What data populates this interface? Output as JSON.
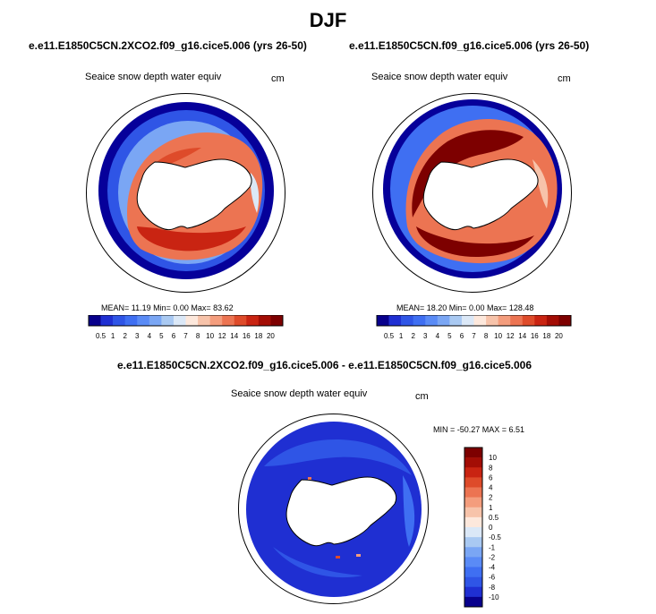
{
  "page_title": "DJF",
  "panels": [
    {
      "case": "e.e11.E1850C5CN.2XCO2.f09_g16.cice5.006 (yrs 26-50)",
      "variable": "Seaice snow depth water equiv",
      "units": "cm",
      "stats": "MEAN=  11.19  Min=   0.00  Max=  83.62",
      "mean": 11.19,
      "min": 0.0,
      "max": 83.62
    },
    {
      "case": "e.e11.E1850C5CN.f09_g16.cice5.006 (yrs 26-50)",
      "variable": "Seaice snow depth water equiv",
      "units": "cm",
      "stats": "MEAN=  18.20  Min=   0.00  Max= 128.48",
      "mean": 18.2,
      "min": 0.0,
      "max": 128.48
    },
    {
      "case": "e.e11.E1850C5CN.2XCO2.f09_g16.cice5.006 - e.e11.E1850C5CN.f09_g16.cice5.006",
      "variable": "Seaice snow depth water equiv",
      "units": "cm",
      "stats": "MIN = -50.27 MAX =   6.51",
      "min": -50.27,
      "max": 6.51
    }
  ],
  "colorbar_abs": {
    "labels": [
      "0.5",
      "1",
      "2",
      "3",
      "4",
      "5",
      "6",
      "7",
      "8",
      "10",
      "12",
      "14",
      "16",
      "18",
      "20"
    ],
    "colors": [
      "#08008c",
      "#1f2fd2",
      "#2f55e6",
      "#3f6ff2",
      "#5a8bf6",
      "#7aa6f4",
      "#a9c9f2",
      "#dbe8f7",
      "#fde8dc",
      "#f7c3aa",
      "#f49d7d",
      "#ec7452",
      "#de4b2a",
      "#c92412",
      "#a30d05",
      "#7d0000"
    ]
  },
  "colorbar_diff": {
    "labels": [
      "10",
      "8",
      "6",
      "4",
      "2",
      "1",
      "0.5",
      "0",
      "-0.5",
      "-1",
      "-2",
      "-4",
      "-6",
      "-8",
      "-10"
    ],
    "colors": [
      "#7d0000",
      "#a30d05",
      "#c92412",
      "#de4b2a",
      "#ec7452",
      "#f49d7d",
      "#f7c3aa",
      "#fde8dc",
      "#dbe8f7",
      "#a9c9f2",
      "#7aa6f4",
      "#5a8bf6",
      "#3f6ff2",
      "#2f55e6",
      "#1f2fd2",
      "#08008c"
    ]
  },
  "colors": {
    "land": "#ffffff",
    "outline": "#000000"
  }
}
